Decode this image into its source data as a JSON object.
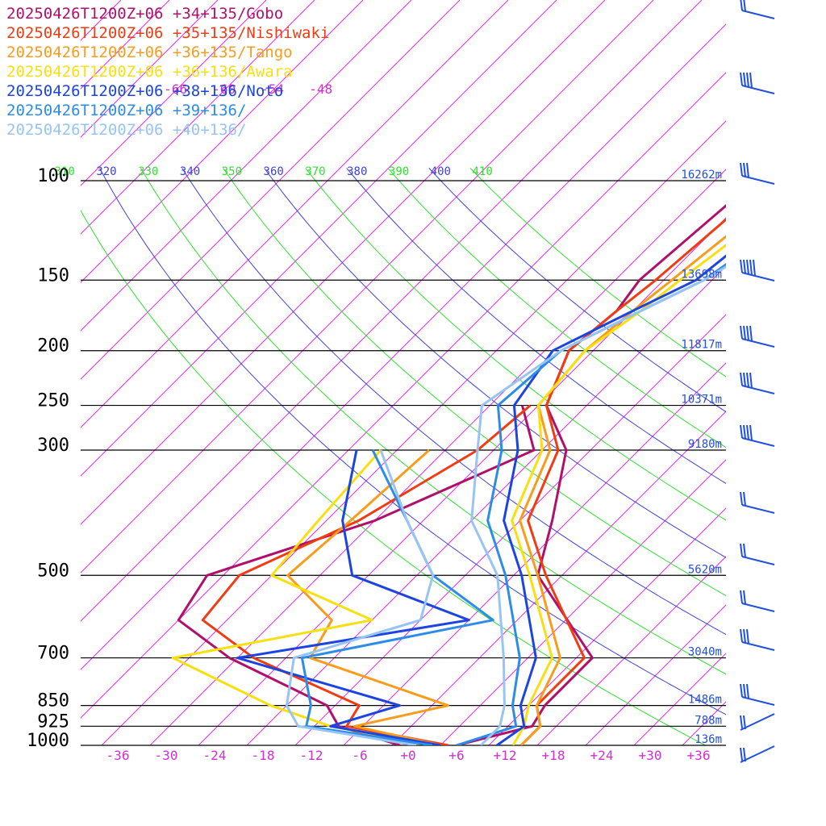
{
  "chart_data": {
    "type": "line",
    "chart_kind": "skew-T log-p sounding",
    "legend_placement": "top-left",
    "series": [
      {
        "name": "20250426T1200Z+06 +34+135/Gobo",
        "color": "#b0106a",
        "temperature": [
          [
            1000,
            6
          ],
          [
            925,
            13
          ],
          [
            850,
            12
          ],
          [
            700,
            12
          ],
          [
            500,
            -5
          ],
          [
            400,
            -10
          ],
          [
            300,
            -17
          ],
          [
            250,
            -25
          ],
          [
            200,
            -29
          ],
          [
            170,
            -28
          ],
          [
            150,
            -29
          ],
          [
            100,
            -27
          ],
          [
            70,
            -19
          ],
          [
            50,
            -5
          ]
        ],
        "dewpoint": [
          [
            1000,
            -1
          ],
          [
            925,
            -11
          ],
          [
            850,
            -15
          ],
          [
            700,
            -33
          ],
          [
            600,
            -44
          ],
          [
            500,
            -46
          ],
          [
            400,
            -32
          ],
          [
            300,
            -21
          ],
          [
            250,
            -28
          ]
        ]
      },
      {
        "name": "20250426T1200Z+06 +35+135/Nishiwaki",
        "color": "#f03c14",
        "temperature": [
          [
            1000,
            14
          ],
          [
            925,
            14
          ],
          [
            850,
            11
          ],
          [
            700,
            11
          ],
          [
            500,
            -4
          ],
          [
            400,
            -13
          ],
          [
            300,
            -18
          ],
          [
            250,
            -25
          ],
          [
            200,
            -29
          ],
          [
            170,
            -28
          ],
          [
            150,
            -27
          ],
          [
            100,
            -25
          ],
          [
            70,
            -19
          ],
          [
            50,
            -5
          ]
        ],
        "dewpoint": [
          [
            1000,
            5
          ],
          [
            925,
            -10
          ],
          [
            850,
            -11
          ],
          [
            700,
            -30
          ],
          [
            600,
            -41
          ],
          [
            500,
            -42
          ],
          [
            400,
            -34
          ],
          [
            300,
            -28
          ],
          [
            250,
            -27
          ]
        ]
      },
      {
        "name": "20250426T1200Z+06 +36+135/Tango",
        "color": "#f89c1c",
        "temperature": [
          [
            1000,
            14
          ],
          [
            925,
            14
          ],
          [
            850,
            11
          ],
          [
            700,
            8
          ],
          [
            500,
            -5
          ],
          [
            400,
            -14
          ],
          [
            300,
            -19
          ],
          [
            250,
            -26
          ],
          [
            200,
            -27
          ],
          [
            170,
            -26
          ],
          [
            150,
            -25
          ],
          [
            100,
            -22
          ],
          [
            70,
            -15
          ],
          [
            50,
            -3
          ]
        ],
        "dewpoint": [
          [
            1000,
            4
          ],
          [
            925,
            -9
          ],
          [
            850,
            0
          ],
          [
            700,
            -23
          ],
          [
            600,
            -25
          ],
          [
            500,
            -36
          ],
          [
            400,
            -35
          ],
          [
            300,
            -34
          ]
        ]
      },
      {
        "name": "20250426T1200Z+06 +36+136/Awara",
        "color": "#f8e010",
        "temperature": [
          [
            1000,
            13
          ],
          [
            925,
            12
          ],
          [
            850,
            10
          ],
          [
            700,
            7
          ],
          [
            500,
            -6
          ],
          [
            400,
            -15
          ],
          [
            300,
            -20
          ],
          [
            250,
            -26
          ],
          [
            200,
            -27
          ],
          [
            170,
            -25
          ],
          [
            150,
            -24
          ],
          [
            100,
            -20
          ],
          [
            70,
            -12
          ],
          [
            50,
            -2
          ]
        ],
        "dewpoint": [
          [
            1000,
            3
          ],
          [
            925,
            -12
          ],
          [
            850,
            -22
          ],
          [
            700,
            -40
          ],
          [
            600,
            -20
          ],
          [
            500,
            -38
          ],
          [
            400,
            -39
          ],
          [
            300,
            -40
          ]
        ]
      },
      {
        "name": "20250426T1200Z+06 +38+136/Noto",
        "color": "#1c44e0",
        "temperature": [
          [
            1000,
            11
          ],
          [
            925,
            12
          ],
          [
            850,
            9
          ],
          [
            700,
            5
          ],
          [
            500,
            -7
          ],
          [
            400,
            -16
          ],
          [
            300,
            -23
          ],
          [
            250,
            -29
          ],
          [
            200,
            -31
          ],
          [
            170,
            -26
          ],
          [
            150,
            -22
          ],
          [
            100,
            -19
          ],
          [
            70,
            -9
          ],
          [
            50,
            0
          ]
        ],
        "dewpoint": [
          [
            1000,
            4
          ],
          [
            925,
            -12
          ],
          [
            850,
            -6
          ],
          [
            700,
            -32
          ],
          [
            600,
            -8
          ],
          [
            500,
            -28
          ],
          [
            400,
            -36
          ],
          [
            300,
            -43
          ]
        ]
      },
      {
        "name": "20250426T1200Z+06 +39+136/",
        "color": "#2c8ce8",
        "temperature": [
          [
            1000,
            6
          ],
          [
            925,
            11
          ],
          [
            850,
            8
          ],
          [
            700,
            3
          ],
          [
            500,
            -9
          ],
          [
            400,
            -18
          ],
          [
            300,
            -25
          ],
          [
            250,
            -31
          ],
          [
            200,
            -30
          ],
          [
            170,
            -25
          ],
          [
            150,
            -21
          ],
          [
            100,
            -16
          ],
          [
            70,
            -7
          ],
          [
            50,
            1
          ]
        ],
        "dewpoint": [
          [
            1000,
            3
          ],
          [
            925,
            -15
          ],
          [
            850,
            -17
          ],
          [
            700,
            -24
          ],
          [
            600,
            -5
          ],
          [
            500,
            -18
          ],
          [
            400,
            -28
          ],
          [
            300,
            -41
          ]
        ]
      },
      {
        "name": "20250426T1200Z+06 +40+136/",
        "color": "#98c4f4",
        "temperature": [
          [
            1000,
            9
          ],
          [
            925,
            9
          ],
          [
            850,
            7
          ],
          [
            700,
            1
          ],
          [
            500,
            -10
          ],
          [
            400,
            -20
          ],
          [
            300,
            -28
          ],
          [
            250,
            -33
          ],
          [
            200,
            -30
          ],
          [
            170,
            -25
          ],
          [
            150,
            -21
          ],
          [
            100,
            -13
          ],
          [
            70,
            -5
          ],
          [
            50,
            2
          ]
        ],
        "dewpoint": [
          [
            1000,
            1
          ],
          [
            925,
            -16
          ],
          [
            850,
            -20
          ],
          [
            700,
            -25
          ],
          [
            600,
            -14
          ],
          [
            500,
            -18
          ],
          [
            400,
            -28
          ],
          [
            300,
            -40
          ]
        ]
      }
    ],
    "pressure_levels": [
      100,
      150,
      200,
      250,
      300,
      500,
      700,
      850,
      925,
      1000
    ],
    "pressure_labels": [
      "100",
      "150",
      "200",
      "250",
      "300",
      "500",
      "700",
      "850",
      "925",
      "1000"
    ],
    "heights": [
      "16262m",
      "13698m",
      "11817m",
      "10371m",
      "9180m",
      "5620m",
      "3040m",
      "1486m",
      "788m",
      "136m"
    ],
    "temperature_ticks": [
      "-36",
      "-30",
      "-24",
      "-18",
      "-12",
      "-6",
      "+0",
      "+6",
      "+12",
      "+18",
      "+24",
      "+30",
      "+36"
    ],
    "upper_ticks": [
      "-66",
      "-60",
      "-54",
      "-48"
    ],
    "theta_labels": [
      "310",
      "320",
      "330",
      "340",
      "350",
      "360",
      "370",
      "380",
      "390",
      "400",
      "410"
    ],
    "theta_colors": [
      "#30e030",
      "#4040e0",
      "#30e030",
      "#4040e0",
      "#30e030",
      "#4040e0",
      "#30e030",
      "#4040e0",
      "#30e030",
      "#4040e0",
      "#30e030"
    ],
    "grid": true
  }
}
